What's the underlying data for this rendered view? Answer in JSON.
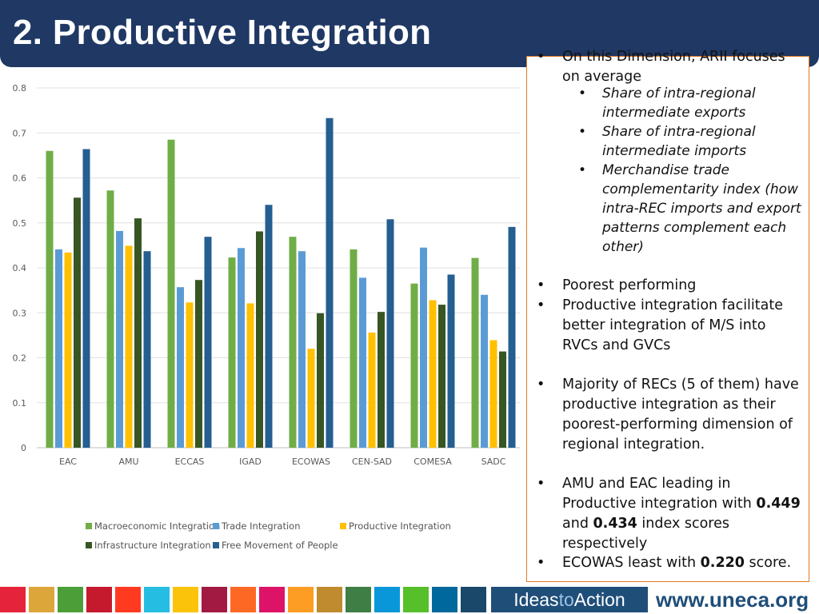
{
  "slide": {
    "title": "2. Productive Integration"
  },
  "chart_data": {
    "type": "bar",
    "title": "",
    "xlabel": "",
    "ylabel": "",
    "ylim": [
      0,
      0.8
    ],
    "yticks": [
      "0",
      "0.1",
      "0.2",
      "0.3",
      "0.4",
      "0.5",
      "0.6",
      "0.7",
      "0.8"
    ],
    "categories": [
      "EAC",
      "AMU",
      "ECCAS",
      "IGAD",
      "ECOWAS",
      "CEN-SAD",
      "COMESA",
      "SADC"
    ],
    "series": [
      {
        "name": "Macroeconomic Integration",
        "color": "#70ad47",
        "values": [
          0.66,
          0.572,
          0.685,
          0.423,
          0.469,
          0.441,
          0.365,
          0.422
        ]
      },
      {
        "name": "Trade Integration",
        "color": "#5b9bd5",
        "values": [
          0.441,
          0.482,
          0.357,
          0.444,
          0.437,
          0.378,
          0.445,
          0.34
        ]
      },
      {
        "name": "Productive Integration",
        "color": "#ffc000",
        "values": [
          0.434,
          0.449,
          0.323,
          0.321,
          0.22,
          0.256,
          0.328,
          0.239
        ]
      },
      {
        "name": "Infrastructure Integration",
        "color": "#375623",
        "values": [
          0.556,
          0.51,
          0.373,
          0.481,
          0.299,
          0.302,
          0.318,
          0.214
        ]
      },
      {
        "name": "Free Movement of People",
        "color": "#255e91",
        "values": [
          0.664,
          0.437,
          0.469,
          0.54,
          0.733,
          0.508,
          0.385,
          0.491
        ]
      }
    ],
    "legend_position": "bottom"
  },
  "panel": {
    "bullet1": "On this Dimension, ARII focuses on average",
    "sub1": "Share of intra-regional intermediate exports",
    "sub2": "Share of intra-regional intermediate imports",
    "sub3": "Merchandise trade complementarity index (how intra-REC imports and export patterns complement each other)",
    "bullet2": "Poorest performing",
    "bullet3": "Productive integration facilitate better integration of M/S into RVCs and GVCs",
    "bullet4": "Majority of RECs (5 of them) have productive integration as their poorest-performing dimension of regional integration.",
    "bullet5_pre": "AMU and EAC leading in Productive integration with ",
    "bullet5_v1": "0.449",
    "bullet5_mid": " and ",
    "bullet5_v2": "0.434",
    "bullet5_post": " index scores respectively",
    "bullet6_pre": "ECOWAS least with ",
    "bullet6_v": "0.220",
    "bullet6_post": " score.",
    "bullet_symbol": "•"
  },
  "footer": {
    "ideas_a": "Ideas",
    "ideas_b": "to",
    "ideas_c": "Action",
    "website": "www.uneca.org",
    "sdg_colors": [
      "#e5243b",
      "#dda63a",
      "#4c9f38",
      "#c5192d",
      "#ff3a21",
      "#26bde2",
      "#fcc30b",
      "#a21942",
      "#fd6925",
      "#dd1367",
      "#fd9d24",
      "#bf8b2e",
      "#3f7e44",
      "#0a97d9",
      "#56c02b",
      "#00689d",
      "#19486a"
    ]
  }
}
